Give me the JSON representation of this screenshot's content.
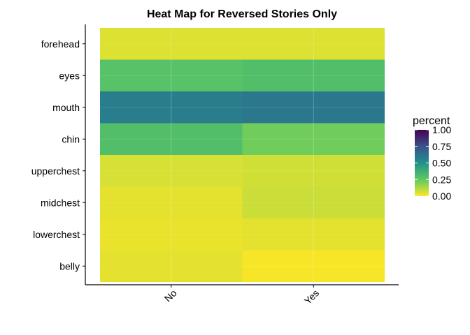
{
  "chart_data": {
    "type": "heatmap",
    "title": "Heat Map for Reversed Stories Only",
    "xlabel": "",
    "ylabel": "",
    "x_categories": [
      "No",
      "Yes"
    ],
    "y_categories": [
      "forehead",
      "eyes",
      "mouth",
      "chin",
      "upperchest",
      "midchest",
      "lowerchest",
      "belly"
    ],
    "values": [
      [
        0.05,
        0.05
      ],
      [
        0.28,
        0.3
      ],
      [
        0.58,
        0.6
      ],
      [
        0.3,
        0.22
      ],
      [
        0.06,
        0.07
      ],
      [
        0.04,
        0.08
      ],
      [
        0.03,
        0.04
      ],
      [
        0.04,
        0.01
      ]
    ],
    "legend": {
      "title": "percent",
      "ticks": [
        "0.00",
        "0.25",
        "0.50",
        "0.75",
        "1.00"
      ],
      "range": [
        0,
        1
      ],
      "colormap": "viridis (reversed)",
      "placement": "right"
    },
    "grid": true
  }
}
